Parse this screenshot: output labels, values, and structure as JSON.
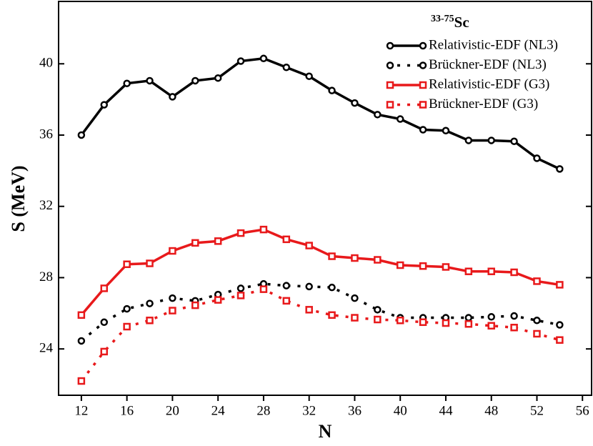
{
  "chart_data": {
    "type": "line",
    "legend_title": {
      "superscript": "33-75",
      "text": "Sc"
    },
    "xlabel": "N",
    "ylabel": "S (MeV)",
    "x": [
      12,
      14,
      16,
      18,
      20,
      22,
      24,
      26,
      28,
      30,
      32,
      34,
      36,
      38,
      40,
      42,
      44,
      46,
      48,
      50,
      52,
      54
    ],
    "series": [
      {
        "name": "Relativistic-EDF (NL3)",
        "color": "#000000",
        "marker": "circle",
        "dash": "solid",
        "values": [
          36.0,
          37.7,
          38.9,
          39.05,
          38.15,
          39.05,
          39.2,
          40.15,
          40.3,
          39.8,
          39.3,
          38.5,
          37.8,
          37.15,
          36.9,
          36.3,
          36.25,
          35.7,
          35.7,
          35.65,
          34.7,
          34.1
        ]
      },
      {
        "name": "Brückner-EDF (NL3)",
        "color": "#000000",
        "marker": "circle",
        "dash": "dotted",
        "values": [
          24.45,
          25.5,
          26.25,
          26.55,
          26.85,
          26.7,
          27.05,
          27.4,
          27.65,
          27.55,
          27.5,
          27.45,
          26.85,
          26.2,
          25.75,
          25.75,
          25.75,
          25.75,
          25.8,
          25.85,
          25.6,
          25.35
        ]
      },
      {
        "name": "Relativistic-EDF (G3)",
        "color": "#e8191b",
        "marker": "square",
        "dash": "solid",
        "values": [
          25.9,
          27.4,
          28.75,
          28.8,
          29.5,
          29.95,
          30.05,
          30.5,
          30.7,
          30.15,
          29.8,
          29.2,
          29.1,
          29.0,
          28.7,
          28.65,
          28.6,
          28.35,
          28.35,
          28.3,
          27.8,
          27.6
        ]
      },
      {
        "name": "Brückner-EDF (G3)",
        "color": "#e8191b",
        "marker": "square",
        "dash": "dotted",
        "values": [
          22.2,
          23.85,
          25.25,
          25.6,
          26.15,
          26.45,
          26.75,
          27.0,
          27.35,
          26.7,
          26.2,
          25.9,
          25.75,
          25.65,
          25.6,
          25.5,
          25.45,
          25.4,
          25.3,
          25.2,
          24.85,
          24.5
        ]
      }
    ],
    "xlim": [
      10,
      56.8
    ],
    "xticks": [
      12,
      16,
      20,
      24,
      28,
      32,
      36,
      40,
      44,
      48,
      52,
      56
    ],
    "ylim": [
      21.4,
      43.5
    ],
    "yticks": [
      24,
      28,
      32,
      36,
      40
    ],
    "grid": false,
    "legend": "upper right"
  }
}
